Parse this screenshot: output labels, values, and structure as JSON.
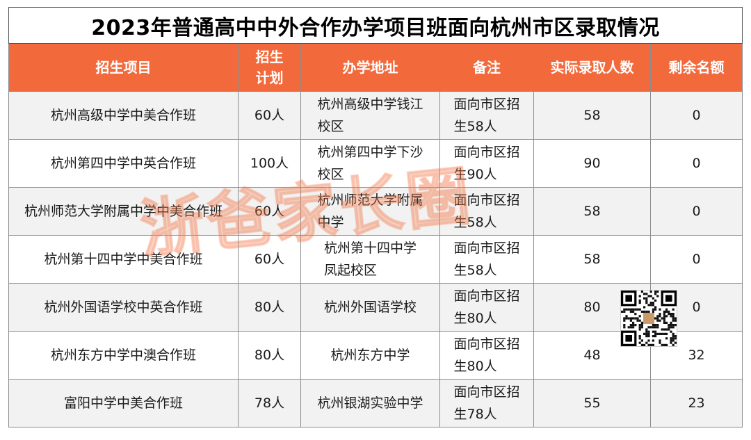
{
  "title": "2023年普通高中中外合作办学项目班面向杭州市区录取情况",
  "headers": [
    "招生项目",
    "招生\n计划",
    "办学地址",
    "备注",
    "实际录取人数",
    "剩余名额"
  ],
  "rows": [
    {
      "project": "杭州高级中学中美合作班",
      "plan": "60人",
      "address": "杭州高级中学钱江\n校区",
      "note": "面向市区招\n生58人",
      "admitted": "58",
      "remaining": "0"
    },
    {
      "project": "杭州第四中学中英合作班",
      "plan": "100人",
      "address": "杭州第四中学下沙\n校区",
      "note": "面向市区招\n生90人",
      "admitted": "90",
      "remaining": "0"
    },
    {
      "project": "杭州师范大学附属中学中美合作班",
      "plan": "60人",
      "address": "杭州师范大学附属\n中学",
      "note": "面向市区招\n生58人",
      "admitted": "58",
      "remaining": "0"
    },
    {
      "project": "杭州第十四中学中美合作班",
      "plan": "60人",
      "address": "杭州第十四中学\n凤起校区",
      "note": "面向市区招\n生58人",
      "admitted": "58",
      "remaining": "0"
    },
    {
      "project": "杭州外国语学校中英合作班",
      "plan": "80人",
      "address": "杭州外国语学校",
      "note": "面向市区招\n生80人",
      "admitted": "80",
      "remaining": "0"
    },
    {
      "project": "杭州东方中学中澳合作班",
      "plan": "80人",
      "address": "杭州东方中学",
      "note": "面向市区招\n生80人",
      "admitted": "48",
      "remaining": "32"
    },
    {
      "project": "富阳中学中美合作班",
      "plan": "78人",
      "address": "杭州银湖实验中学",
      "note": "面向市区招\n生78人",
      "admitted": "55",
      "remaining": "23"
    }
  ],
  "watermark": "浙爸家长圈",
  "colors": {
    "header_bg": "#f26a3c",
    "header_text": "#ffffff",
    "watermark": "#f37848"
  }
}
